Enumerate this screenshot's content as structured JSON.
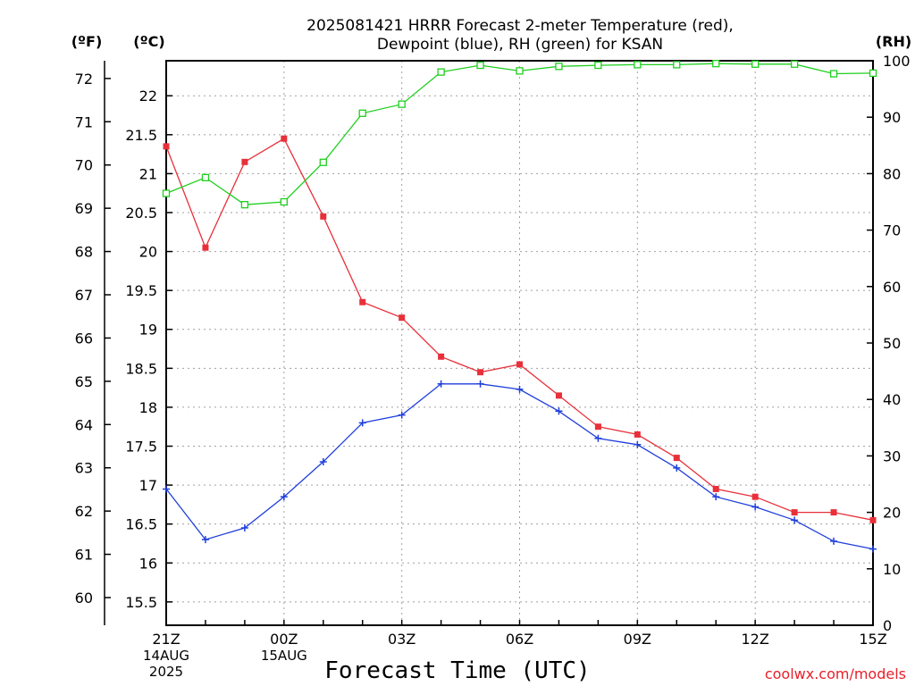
{
  "chart_data": {
    "type": "line",
    "title_line1": "2025081421 HRRR Forecast 2-meter Temperature (red),",
    "title_line2": "Dewpoint (blue), RH (green) for KSAN",
    "xlabel": "Forecast Time (UTC)",
    "credit": "coolwx.com/models",
    "units": {
      "fahrenheit": "(ºF)",
      "celsius": "(ºC)",
      "rh": "(RH)"
    },
    "x_hours": [
      "21Z",
      "22Z",
      "23Z",
      "00Z",
      "01Z",
      "02Z",
      "03Z",
      "04Z",
      "05Z",
      "06Z",
      "07Z",
      "08Z",
      "09Z",
      "10Z",
      "11Z",
      "12Z",
      "13Z",
      "14Z",
      "15Z"
    ],
    "x_tick_labels": [
      {
        "index": 0,
        "lines": [
          "21Z",
          "14AUG",
          "2025"
        ]
      },
      {
        "index": 3,
        "lines": [
          "00Z",
          "15AUG"
        ]
      },
      {
        "index": 6,
        "lines": [
          "03Z"
        ]
      },
      {
        "index": 9,
        "lines": [
          "06Z"
        ]
      },
      {
        "index": 12,
        "lines": [
          "09Z"
        ]
      },
      {
        "index": 15,
        "lines": [
          "12Z"
        ]
      },
      {
        "index": 18,
        "lines": [
          "15Z"
        ]
      }
    ],
    "celsius_axis": {
      "range": [
        15.2,
        22.45
      ],
      "ticks": [
        "15.5",
        "16",
        "16.5",
        "17",
        "17.5",
        "18",
        "18.5",
        "19",
        "19.5",
        "20",
        "20.5",
        "21",
        "21.5",
        "22"
      ]
    },
    "fahrenheit_axis": {
      "range": [
        59.36,
        72.41
      ],
      "ticks": [
        "60",
        "61",
        "62",
        "63",
        "64",
        "65",
        "66",
        "67",
        "68",
        "69",
        "70",
        "71",
        "72"
      ]
    },
    "rh_axis": {
      "range": [
        0,
        100
      ],
      "ticks": [
        "0",
        "10",
        "20",
        "30",
        "40",
        "50",
        "60",
        "70",
        "80",
        "90",
        "100"
      ]
    },
    "grid": true,
    "series": [
      {
        "color": "#e8303a",
        "marker": "filled-square",
        "axis": "celsius",
        "values": [
          21.35,
          20.05,
          21.15,
          21.45,
          20.45,
          19.35,
          19.15,
          18.65,
          18.45,
          18.55,
          18.15,
          17.75,
          17.65,
          17.35,
          16.95,
          16.85,
          16.65,
          16.65,
          16.55
        ]
      },
      {
        "color": "#1f3fdc",
        "marker": "plus",
        "axis": "celsius",
        "values": [
          16.95,
          16.3,
          16.45,
          16.85,
          17.3,
          17.8,
          17.9,
          18.3,
          18.3,
          18.23,
          17.95,
          17.6,
          17.52,
          17.22,
          16.85,
          16.72,
          16.55,
          16.28,
          16.18
        ]
      },
      {
        "color": "#1ecf1e",
        "marker": "open-square",
        "axis": "rh",
        "values": [
          76.5,
          79.3,
          74.5,
          75.0,
          82.0,
          90.7,
          92.3,
          98.0,
          99.2,
          98.2,
          99.0,
          99.2,
          99.3,
          99.3,
          99.5,
          99.4,
          99.4,
          97.7,
          97.8
        ]
      }
    ]
  }
}
